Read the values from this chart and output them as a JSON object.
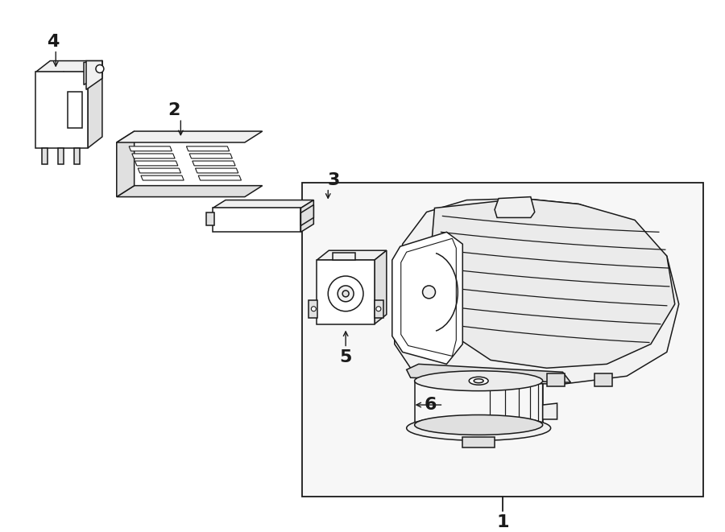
{
  "bg_color": "#ffffff",
  "line_color": "#1a1a1a",
  "fill_white": "#ffffff",
  "fill_light": "#f0f0f0",
  "fill_mid": "#e0e0e0",
  "label_fontsize": 15,
  "figsize": [
    9.0,
    6.61
  ],
  "dpi": 100,
  "labels": [
    "1",
    "2",
    "3",
    "4",
    "5",
    "6"
  ]
}
